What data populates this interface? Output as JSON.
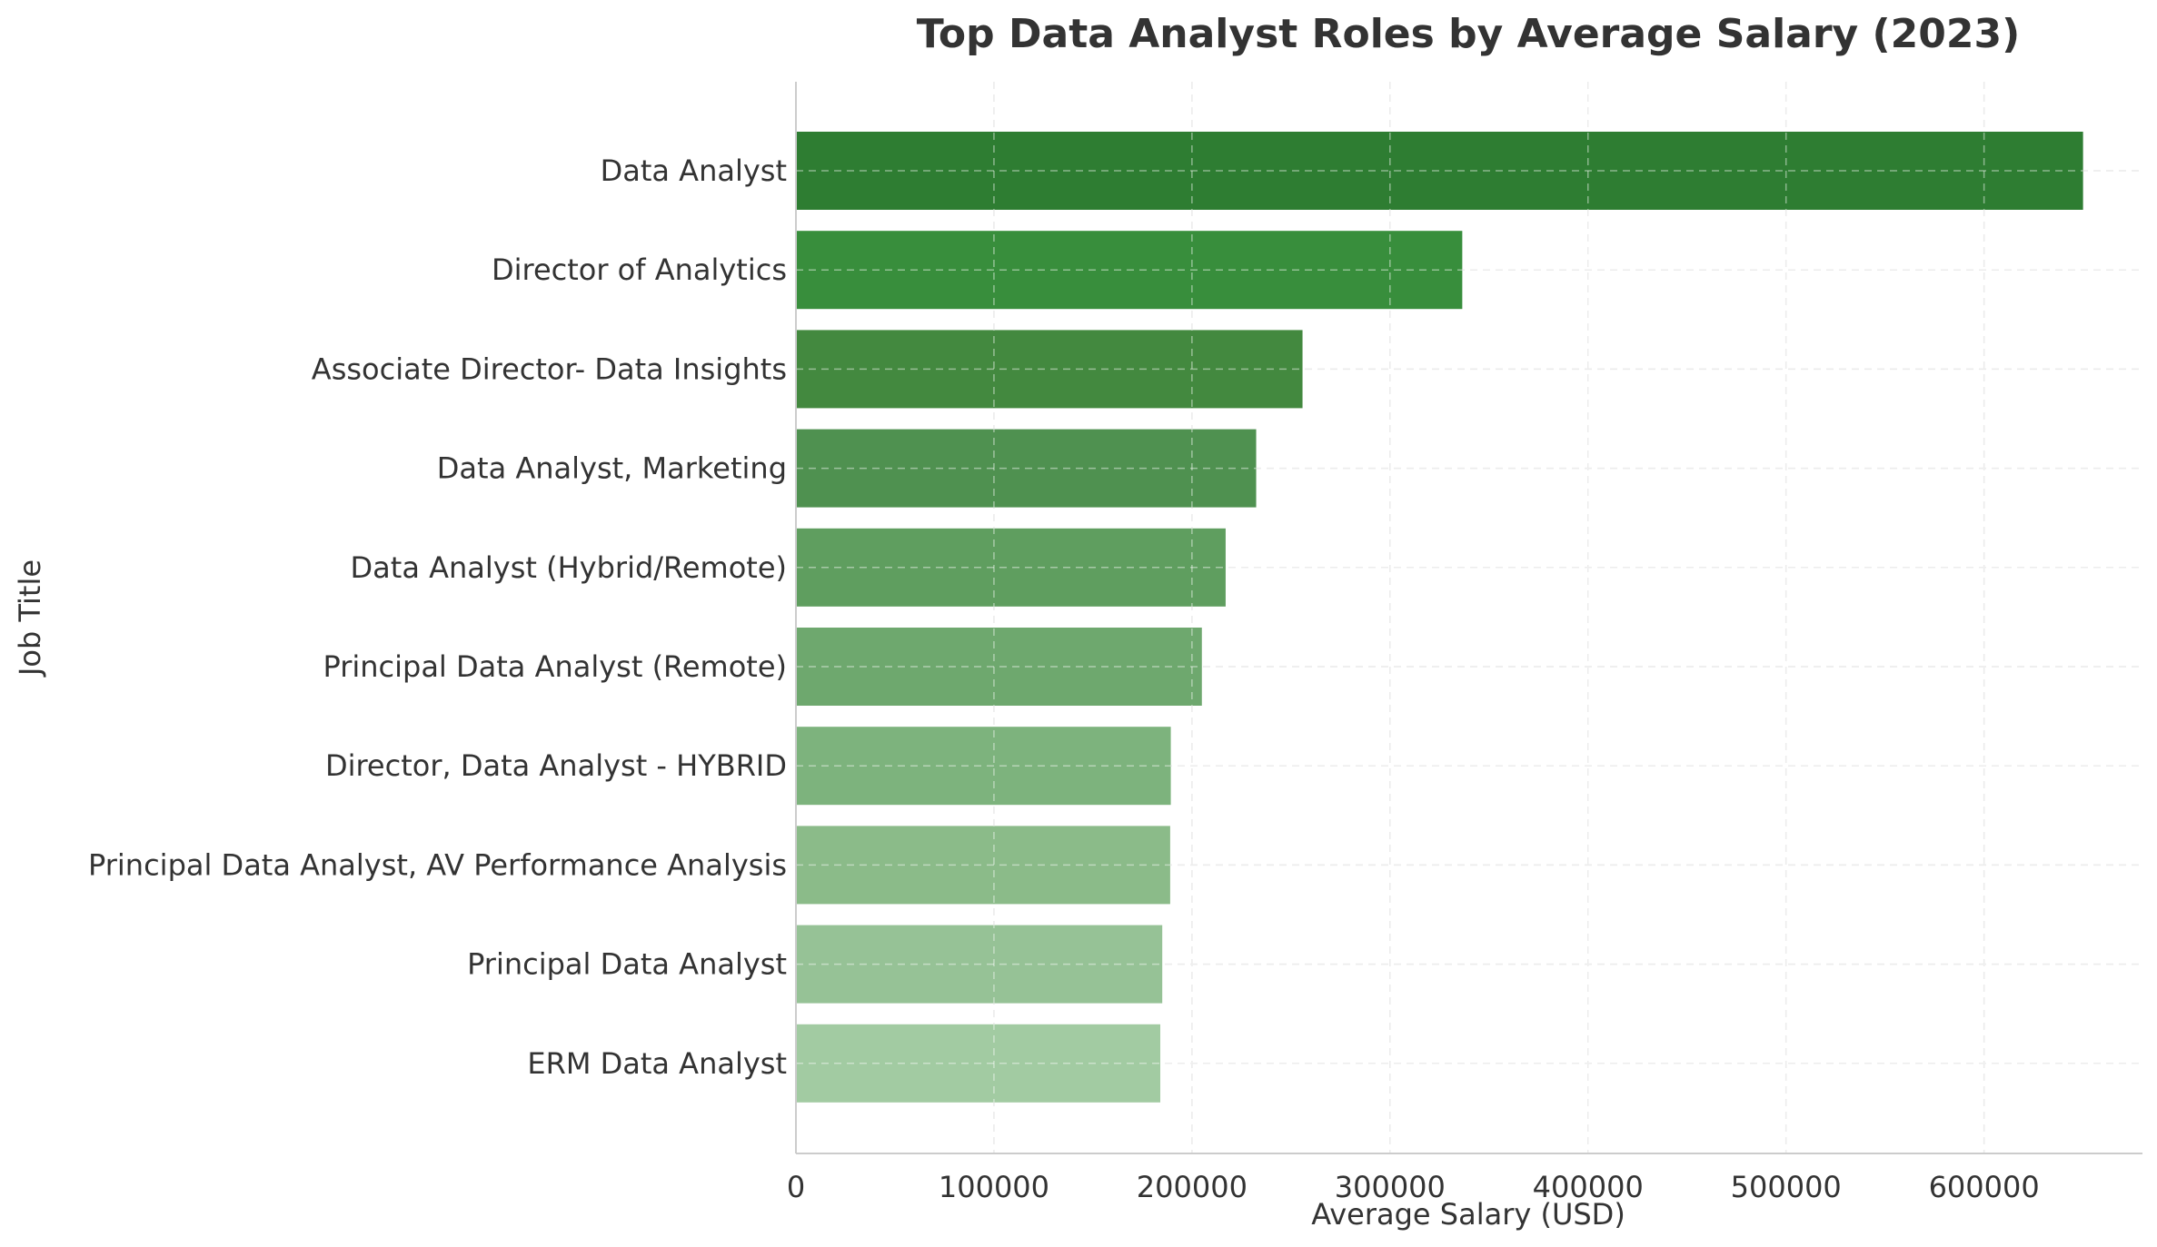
{
  "chart_data": {
    "type": "bar",
    "orientation": "horizontal",
    "title": "Top Data Analyst Roles by Average Salary (2023)",
    "xlabel": "Average Salary (USD)",
    "ylabel": "Job Title",
    "xlim": [
      0,
      680000
    ],
    "xticks": [
      0,
      100000,
      200000,
      300000,
      400000,
      500000,
      600000
    ],
    "grid": true,
    "categories": [
      "Data Analyst",
      "Director of Analytics",
      "Associate Director- Data Insights",
      "Data Analyst, Marketing",
      "Data Analyst (Hybrid/Remote)",
      "Principal Data Analyst (Remote)",
      "Director, Data Analyst - HYBRID",
      "Principal Data Analyst, AV Performance Analysis",
      "Principal Data Analyst",
      "ERM Data Analyst"
    ],
    "values": [
      650000,
      336500,
      255830,
      232423,
      217000,
      205000,
      189309,
      189000,
      185000,
      184000
    ],
    "colors": [
      "#2e7d32",
      "#388e3c",
      "#43893f",
      "#4f9150",
      "#5f9e5f",
      "#6ea86e",
      "#7db37d",
      "#8bbb89",
      "#96c296",
      "#a2cba2"
    ]
  }
}
